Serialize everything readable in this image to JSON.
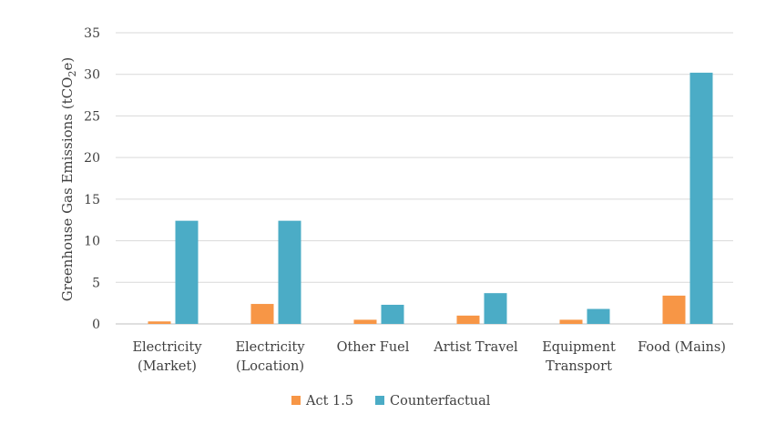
{
  "chart_data": {
    "type": "bar",
    "categories": [
      [
        "Electricity",
        "(Market)"
      ],
      [
        "Electricity",
        "(Location)"
      ],
      [
        "Other Fuel"
      ],
      [
        "Artist Travel"
      ],
      [
        "Equipment",
        "Transport"
      ],
      [
        "Food (Mains)"
      ]
    ],
    "series": [
      {
        "name": "Act 1.5",
        "color": "#F79646",
        "values": [
          0.3,
          2.4,
          0.5,
          1.0,
          0.5,
          3.4
        ]
      },
      {
        "name": "Counterfactual",
        "color": "#4BACC6",
        "values": [
          12.4,
          12.4,
          2.3,
          3.7,
          1.8,
          30.2
        ]
      }
    ],
    "title": "",
    "xlabel": "",
    "ylabel": {
      "main": "Greenhouse Gas Emissions (tCO",
      "sub": "2",
      "end": "e)"
    },
    "ylim": [
      0,
      35
    ],
    "yticks": [
      0,
      5,
      10,
      15,
      20,
      25,
      30,
      35
    ],
    "grid": true,
    "legend": "bottom-center"
  }
}
